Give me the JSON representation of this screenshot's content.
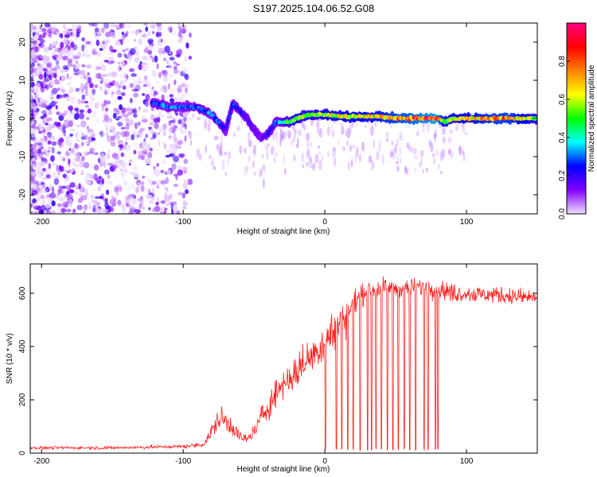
{
  "title": "S197.2025.104.06.52.G08",
  "chart_data": [
    {
      "type": "heatmap",
      "title": "",
      "xlabel": "Height of straight line (km)",
      "ylabel": "Frequency (Hz)",
      "xlim": [
        -208,
        150
      ],
      "ylim": [
        -25,
        25
      ],
      "xticks": [
        -200,
        -100,
        0,
        100
      ],
      "yticks": [
        -20,
        -10,
        0,
        10,
        20
      ],
      "colorbar": {
        "label": "Normalized spectral amplitude",
        "range": [
          0,
          1
        ],
        "ticks": [
          0.0,
          0.2,
          0.4,
          0.6,
          0.8
        ],
        "colormap": [
          "#f0e0ff",
          "#8000ff",
          "#0000ff",
          "#00ffff",
          "#00ff00",
          "#ffff00",
          "#ff8000",
          "#ff0000",
          "#ff0080"
        ]
      },
      "ridge": {
        "x": [
          -120,
          -110,
          -100,
          -90,
          -85,
          -80,
          -75,
          -70,
          -65,
          -60,
          -55,
          -50,
          -45,
          -40,
          -35,
          -30,
          -25,
          -20,
          -10,
          0,
          10,
          20,
          30,
          40,
          50,
          60,
          70,
          80,
          85,
          90,
          100,
          110,
          120,
          130,
          140,
          150
        ],
        "freq": [
          4,
          3,
          3,
          3,
          2,
          1,
          -1,
          -3,
          4,
          2,
          0,
          -3,
          -5,
          -4,
          -1,
          -1,
          -1,
          0,
          1,
          1,
          0.5,
          0.5,
          0.5,
          0.5,
          0,
          0,
          0,
          0,
          -1,
          0,
          0,
          0,
          0,
          0,
          0,
          0
        ],
        "amplitude": [
          0.3,
          0.35,
          0.3,
          0.35,
          0.3,
          0.35,
          0.3,
          0.2,
          0.3,
          0.25,
          0.2,
          0.15,
          0.15,
          0.25,
          0.3,
          0.45,
          0.55,
          0.6,
          0.6,
          0.65,
          0.65,
          0.7,
          0.7,
          0.75,
          0.8,
          0.85,
          0.9,
          0.95,
          0.6,
          0.65,
          0.7,
          0.75,
          0.8,
          0.8,
          0.7,
          0.6
        ]
      }
    },
    {
      "type": "line",
      "title": "",
      "xlabel": "Height of straight line (km)",
      "ylabel": "SNR (10 * v/v)",
      "xlim": [
        -208,
        150
      ],
      "ylim": [
        0,
        710
      ],
      "xticks": [
        -200,
        -100,
        0,
        100
      ],
      "yticks": [
        0,
        200,
        400,
        600
      ],
      "color": "#ff2020",
      "envelope": {
        "x": [
          -208,
          -150,
          -100,
          -90,
          -85,
          -80,
          -75,
          -70,
          -65,
          -60,
          -55,
          -50,
          -45,
          -40,
          -35,
          -30,
          -25,
          -20,
          -15,
          -10,
          -5,
          0,
          5,
          10,
          15,
          20,
          25,
          30,
          40,
          50,
          60,
          70,
          80,
          85,
          90,
          100,
          110,
          120,
          130,
          140,
          150
        ],
        "mean": [
          20,
          20,
          25,
          30,
          35,
          80,
          130,
          120,
          100,
          60,
          50,
          80,
          130,
          180,
          220,
          260,
          280,
          300,
          340,
          360,
          390,
          420,
          450,
          480,
          520,
          560,
          590,
          610,
          620,
          620,
          620,
          625,
          620,
          610,
          600,
          600,
          595,
          595,
          590,
          585,
          585
        ],
        "noise": [
          10,
          10,
          12,
          15,
          20,
          50,
          80,
          80,
          60,
          40,
          30,
          50,
          80,
          90,
          100,
          100,
          100,
          110,
          120,
          120,
          120,
          130,
          140,
          130,
          120,
          80,
          70,
          60,
          60,
          55,
          55,
          60,
          60,
          70,
          60,
          55,
          55,
          55,
          55,
          55,
          55
        ]
      },
      "dropouts_x": [
        0.5,
        8,
        12,
        16,
        20,
        25,
        30,
        33,
        36,
        40,
        44,
        48,
        52,
        56,
        60,
        64,
        70,
        73,
        78,
        80
      ]
    }
  ]
}
